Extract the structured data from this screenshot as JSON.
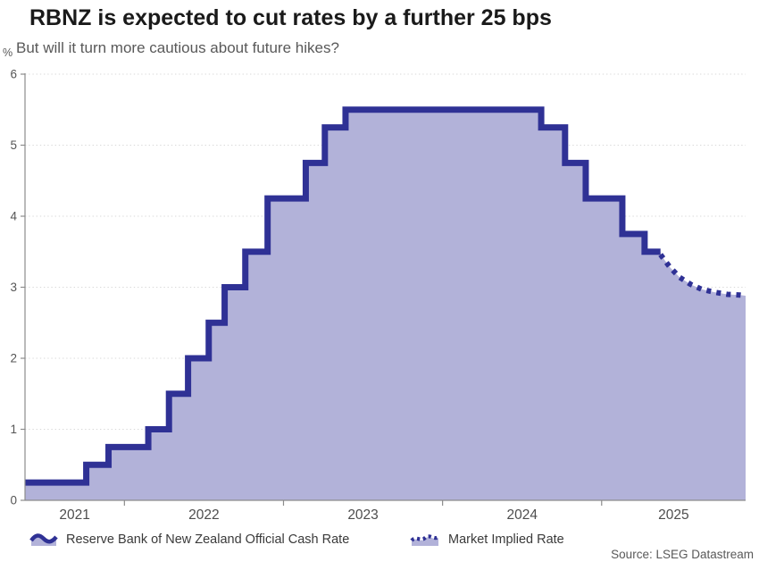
{
  "header": {
    "title": "RBNZ is expected to cut rates by a further 25 bps",
    "subtitle": "But will it turn more cautious about future hikes?"
  },
  "footer": {
    "source": "Source: LSEG Datastream"
  },
  "colors": {
    "line": "#2f3195",
    "fill": "#b2b2d9",
    "grid": "#d9d9d9",
    "axis": "#8c8c8c",
    "tick_label": "#555555",
    "x_label": "#4d4d4d",
    "title": "#1a1a1a",
    "subtitle": "#595959",
    "legend_text": "#3a3a3a",
    "source_text": "#595959"
  },
  "chart_data": {
    "type": "line",
    "subtype": "step-area with dotted forecast",
    "title": "RBNZ is expected to cut rates by a further 25 bps",
    "subtitle": "But will it turn more cautious about future hikes?",
    "xlabel": "",
    "ylabel": "%",
    "ylim": [
      0,
      6
    ],
    "xlim": [
      2021.375,
      2025.905
    ],
    "y_ticks": [
      0,
      1,
      2,
      3,
      4,
      5,
      6
    ],
    "x_tick_years": [
      2022,
      2023,
      2024,
      2025
    ],
    "x_labels": [
      "2021",
      "2022",
      "2023",
      "2024",
      "2025"
    ],
    "grid": "horizontal-dotted",
    "legend_position": "bottom",
    "series": [
      {
        "name": "Reserve Bank of New Zealand Official Cash Rate",
        "style": "solid-step",
        "points": [
          [
            2021.375,
            0.25
          ],
          [
            2021.76,
            0.5
          ],
          [
            2021.9,
            0.75
          ],
          [
            2022.15,
            1.0
          ],
          [
            2022.28,
            1.5
          ],
          [
            2022.4,
            2.0
          ],
          [
            2022.53,
            2.5
          ],
          [
            2022.63,
            3.0
          ],
          [
            2022.76,
            3.5
          ],
          [
            2022.9,
            4.25
          ],
          [
            2023.14,
            4.75
          ],
          [
            2023.26,
            5.25
          ],
          [
            2023.39,
            5.5
          ],
          [
            2024.62,
            5.25
          ],
          [
            2024.77,
            4.75
          ],
          [
            2024.9,
            4.25
          ],
          [
            2025.13,
            3.75
          ],
          [
            2025.27,
            3.5
          ],
          [
            2025.37,
            3.5
          ]
        ]
      },
      {
        "name": "Market Implied Rate",
        "style": "dotted",
        "points": [
          [
            2025.37,
            3.46
          ],
          [
            2025.43,
            3.28
          ],
          [
            2025.49,
            3.14
          ],
          [
            2025.56,
            3.04
          ],
          [
            2025.63,
            2.97
          ],
          [
            2025.71,
            2.93
          ],
          [
            2025.79,
            2.9
          ],
          [
            2025.87,
            2.89
          ],
          [
            2025.905,
            2.88
          ]
        ]
      }
    ]
  }
}
